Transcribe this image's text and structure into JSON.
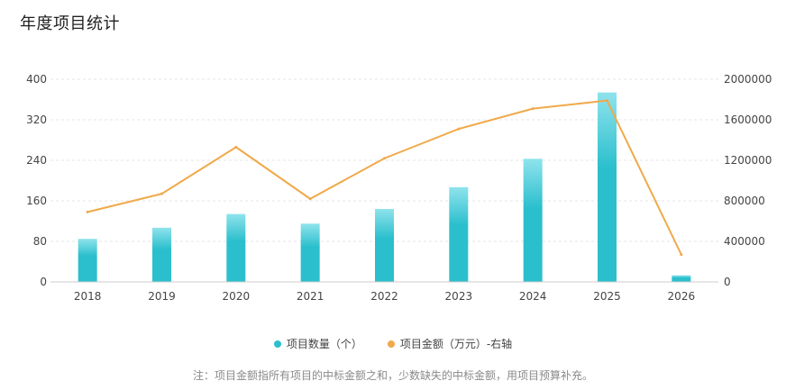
{
  "title": "年度项目统计",
  "legend": {
    "count_label": "项目数量（个）",
    "amount_label": "项目金额（万元）-右轴"
  },
  "note": "注：项目金额指所有项目的中标金额之和，少数缺失的中标金额，用项目预算补充。",
  "colors": {
    "bar_top": "#8fe3ec",
    "bar_bottom": "#2bbfcd",
    "line": "#f0a94a",
    "grid": "#e6e6e6",
    "axis_text": "#444444"
  },
  "chart_data": {
    "type": "bar",
    "title": "年度项目统计",
    "categories": [
      "2018",
      "2019",
      "2020",
      "2021",
      "2022",
      "2023",
      "2024",
      "2025",
      "2026"
    ],
    "series": [
      {
        "name": "项目数量（个）",
        "type": "bar",
        "axis": "left",
        "values": [
          85,
          107,
          134,
          115,
          144,
          187,
          243,
          374,
          13
        ]
      },
      {
        "name": "项目金额（万元）-右轴",
        "type": "line",
        "axis": "right",
        "values": [
          690000,
          870000,
          1330000,
          820000,
          1220000,
          1510000,
          1710000,
          1790000,
          270000
        ]
      }
    ],
    "left_axis": {
      "min": 0,
      "max": 400,
      "ticks": [
        "0",
        "80",
        "160",
        "240",
        "320",
        "400"
      ]
    },
    "right_axis": {
      "min": 0,
      "max": 2000000,
      "ticks": [
        "0",
        "400000",
        "800000",
        "1200000",
        "1600000",
        "2000000"
      ]
    },
    "grid": true,
    "legend_position": "bottom"
  }
}
